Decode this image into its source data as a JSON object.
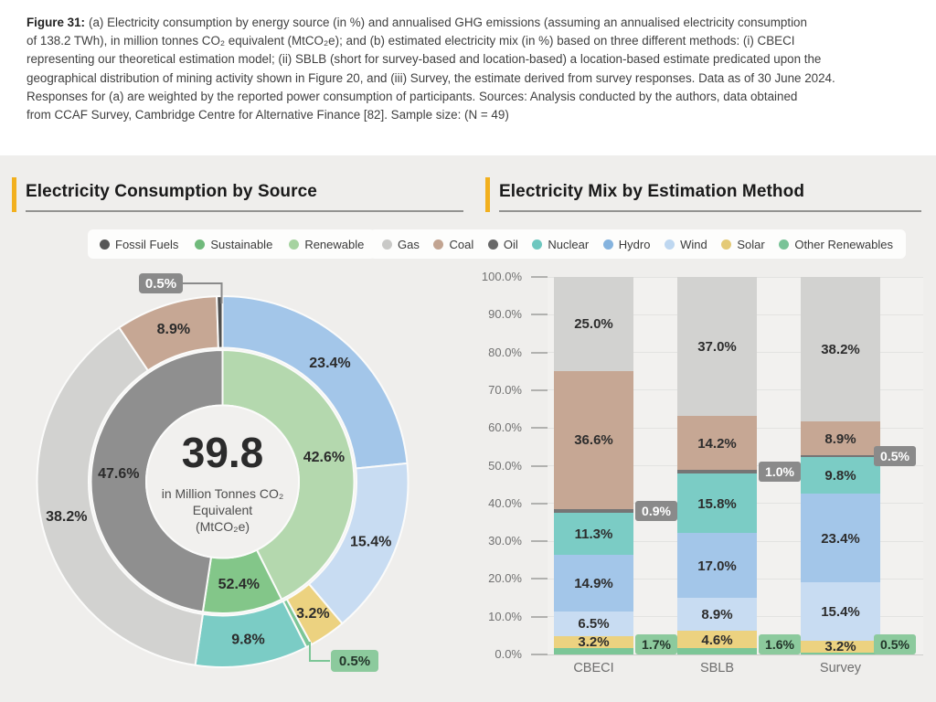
{
  "caption": {
    "prefix": "Figure 31:",
    "lines": [
      "(a) Electricity consumption by energy source (in %) and annualised GHG emissions (assuming an annualised electricity consumption",
      "of 138.2 TWh), in million tonnes CO₂ equivalent (MtCO₂e); and (b) estimated electricity mix (in %) based on three different methods: (i) CBECI",
      "representing our theoretical estimation model; (ii) SBLB (short for survey-based and location-based) a location-based estimate predicated upon the",
      "geographical distribution of mining activity shown in Figure 20, and (iii) Survey, the estimate derived from survey responses. Data as of 30 June 2024.",
      "Responses for (a) are weighted by the reported power consumption of participants. Sources: Analysis conducted by the authors, data obtained",
      "from CCAF Survey, Cambridge Centre for Alternative Finance [82]. Sample size: (N = 49)"
    ]
  },
  "panel_left": {
    "legend": [
      {
        "label": "Fossil Fuels",
        "color": "#575757"
      },
      {
        "label": "Sustainable",
        "color": "#70ba7b"
      },
      {
        "label": "Renewable",
        "color": "#a6d3a0"
      }
    ]
  },
  "panel_right": {
    "legend": [
      {
        "label": "Gas",
        "color": "#c9c9c7"
      },
      {
        "label": "Coal",
        "color": "#c2a491"
      },
      {
        "label": "Oil",
        "color": "#686868"
      },
      {
        "label": "Nuclear",
        "color": "#6ec7bf"
      },
      {
        "label": "Hydro",
        "color": "#85b3de"
      },
      {
        "label": "Wind",
        "color": "#bed7f0"
      },
      {
        "label": "Solar",
        "color": "#e4ca77"
      },
      {
        "label": "Other Renewables",
        "color": "#79c397"
      }
    ]
  },
  "chart_data": [
    {
      "type": "donut",
      "title": "Electricity Consumption by Source",
      "center": {
        "value": "39.8",
        "unit_lines": [
          "in Million Tonnes CO₂",
          "Equivalent",
          "(MtCO₂e)"
        ]
      },
      "inner_ring": [
        {
          "name": "Renewable",
          "value": 42.6,
          "label": "42.6%",
          "color": "#b4d8ae"
        },
        {
          "name": "Sustainable",
          "value": 9.8,
          "label": "52.4%",
          "color": "#83c689",
          "note": "Sustainable total 52.4% = Renewable 42.6% + Nuclear 9.8%"
        },
        {
          "name": "Fossil Fuels",
          "value": 47.6,
          "label": "47.6%",
          "color": "#8f8f8f",
          "label_color": "#ffffff"
        }
      ],
      "outer_ring": [
        {
          "name": "Hydro",
          "value": 23.4,
          "label": "23.4%",
          "color": "#a3c6e9"
        },
        {
          "name": "Wind",
          "value": 15.4,
          "label": "15.4%",
          "color": "#c8dcf2"
        },
        {
          "name": "Solar",
          "value": 3.2,
          "label": "3.2%",
          "color": "#ecd280"
        },
        {
          "name": "Other Renewables",
          "value": 0.5,
          "label": "0.5%",
          "color": "#7cc697",
          "callout": "green"
        },
        {
          "name": "Nuclear",
          "value": 9.8,
          "label": "9.8%",
          "color": "#7bccc5"
        },
        {
          "name": "Gas",
          "value": 38.2,
          "label": "38.2%",
          "color": "#d2d2d0"
        },
        {
          "name": "Coal",
          "value": 8.9,
          "label": "8.9%",
          "color": "#c6a794"
        },
        {
          "name": "Oil",
          "value": 0.5,
          "label": "0.5%",
          "color": "#4f4f4f",
          "callout": "gray"
        }
      ]
    },
    {
      "type": "stacked-bar",
      "title": "Electricity Mix by Estimation Method",
      "categories": [
        "CBECI",
        "SBLB",
        "Survey"
      ],
      "ylim": [
        0,
        100
      ],
      "y_ticks": [
        "0.0%",
        "10.0%",
        "20.0%",
        "30.0%",
        "40.0%",
        "50.0%",
        "60.0%",
        "70.0%",
        "80.0%",
        "90.0%",
        "100.0%"
      ],
      "series": [
        {
          "name": "Other Renewables",
          "color": "#7cc697",
          "values": [
            1.7,
            1.6,
            0.5
          ],
          "labels": [
            "1.7%",
            "1.6%",
            "0.5%"
          ],
          "callout": "green"
        },
        {
          "name": "Solar",
          "color": "#ecd280",
          "values": [
            3.2,
            4.6,
            3.2
          ],
          "labels": [
            "3.2%",
            "4.6%",
            "3.2%"
          ]
        },
        {
          "name": "Wind",
          "color": "#c8dcf2",
          "values": [
            6.5,
            8.9,
            15.4
          ],
          "labels": [
            "6.5%",
            "8.9%",
            "15.4%"
          ]
        },
        {
          "name": "Hydro",
          "color": "#a3c6e9",
          "values": [
            14.9,
            17.0,
            23.4
          ],
          "labels": [
            "14.9%",
            "17.0%",
            "23.4%"
          ]
        },
        {
          "name": "Nuclear",
          "color": "#7bccc5",
          "values": [
            11.3,
            15.8,
            9.8
          ],
          "labels": [
            "11.3%",
            "15.8%",
            "9.8%"
          ]
        },
        {
          "name": "Oil",
          "color": "#757575",
          "values": [
            0.9,
            1.0,
            0.5
          ],
          "labels": [
            "0.9%",
            "1.0%",
            "0.5%"
          ],
          "callout": "gray"
        },
        {
          "name": "Coal",
          "color": "#c6a794",
          "values": [
            36.6,
            14.2,
            8.9
          ],
          "labels": [
            "36.6%",
            "14.2%",
            "8.9%"
          ]
        },
        {
          "name": "Gas",
          "color": "#d2d2d0",
          "values": [
            25.0,
            37.0,
            38.2
          ],
          "labels": [
            "25.0%",
            "37.0%",
            "38.2%"
          ]
        }
      ]
    }
  ],
  "colors": {
    "accent": "#f2b01e",
    "background": "#efeeec",
    "callout_gray": "#8a8a8a",
    "callout_green": "#8cca9d"
  }
}
